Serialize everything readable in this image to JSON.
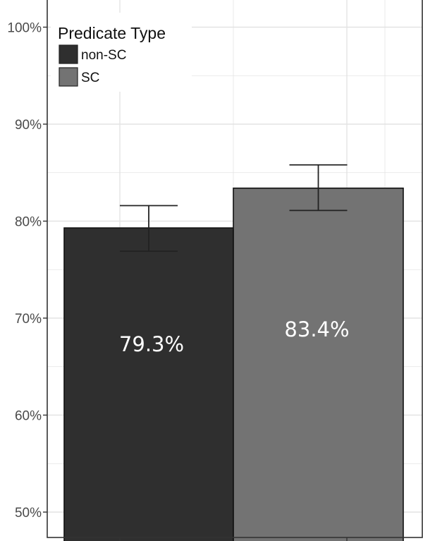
{
  "chart_data": {
    "type": "bar",
    "categories": [
      "non-SC",
      "SC"
    ],
    "values": [
      79.3,
      83.4
    ],
    "error_bars": [
      {
        "low": 76.9,
        "high": 81.6
      },
      {
        "low": 81.1,
        "high": 85.8
      }
    ],
    "data_labels": [
      "79.3%",
      "83.4%"
    ],
    "ylim": [
      48.5,
      102
    ],
    "yticks": [
      50,
      60,
      70,
      80,
      90,
      100
    ],
    "ytick_labels": [
      "50%",
      "60%",
      "70%",
      "80%",
      "90%",
      "100%"
    ],
    "grid": true,
    "legend": {
      "title": "Predicate Type",
      "placement": "top-left",
      "entries": [
        {
          "label": "non-SC",
          "color": "#2f2f2f"
        },
        {
          "label": "SC",
          "color": "#737373"
        }
      ]
    },
    "colors": {
      "non-SC": "#2f2f2f",
      "SC": "#737373",
      "grid": "#e3e3e3",
      "frame": "#333333"
    }
  }
}
